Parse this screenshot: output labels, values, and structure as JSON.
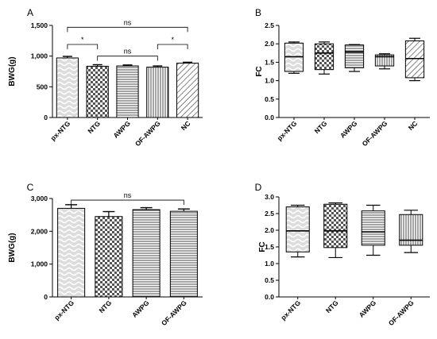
{
  "chart_data": [
    {
      "panel": "A",
      "type": "bar",
      "ylabel": "BWG(g)",
      "ylim": [
        0,
        1500
      ],
      "yticks": [
        0,
        500,
        1000,
        1500
      ],
      "ytick_labels": [
        "0",
        "500",
        "1,000",
        "1,500"
      ],
      "categories": [
        "px-NTG",
        "NTG",
        "AWPG",
        "OF-AWPG",
        "NC"
      ],
      "values": [
        970,
        835,
        840,
        820,
        885
      ],
      "errors": [
        25,
        25,
        15,
        20,
        15
      ],
      "patterns": [
        "wavy",
        "checker",
        "hlines",
        "vlines",
        "diag"
      ],
      "annotations": [
        {
          "text": "ns",
          "from": 0,
          "to": 4,
          "level": 1470
        },
        {
          "text": "*",
          "from": 0,
          "to": 1,
          "level": 1190
        },
        {
          "text": "ns",
          "from": 1,
          "to": 3,
          "level": 1000
        },
        {
          "text": "*",
          "from": 3,
          "to": 4,
          "level": 1190
        }
      ]
    },
    {
      "panel": "B",
      "type": "box",
      "ylabel": "FC",
      "ylim": [
        0,
        2.5
      ],
      "yticks": [
        0,
        0.5,
        1.0,
        1.5,
        2.0,
        2.5
      ],
      "ytick_labels": [
        "0.0",
        "0.5",
        "1.0",
        "1.5",
        "2.0",
        "2.5"
      ],
      "categories": [
        "px-NTG",
        "NTG",
        "AWPG",
        "OF-AWPG",
        "NC"
      ],
      "boxes": [
        {
          "min": 1.2,
          "q1": 1.25,
          "median": 1.65,
          "q3": 2.02,
          "max": 2.05
        },
        {
          "min": 1.18,
          "q1": 1.3,
          "median": 1.75,
          "q3": 2.0,
          "max": 2.05
        },
        {
          "min": 1.25,
          "q1": 1.35,
          "median": 1.78,
          "q3": 1.97,
          "max": 1.98
        },
        {
          "min": 1.32,
          "q1": 1.4,
          "median": 1.65,
          "q3": 1.7,
          "max": 1.73
        },
        {
          "min": 1.0,
          "q1": 1.08,
          "median": 1.6,
          "q3": 2.08,
          "max": 2.15
        }
      ],
      "patterns": [
        "wavy",
        "checker",
        "hlines",
        "vlines",
        "diag"
      ]
    },
    {
      "panel": "C",
      "type": "bar",
      "ylabel": "BWG(g)",
      "ylim": [
        0,
        3000
      ],
      "yticks": [
        0,
        1000,
        2000,
        3000
      ],
      "ytick_labels": [
        "0",
        "1,000",
        "2,000",
        "3,000"
      ],
      "categories": [
        "px-NTG",
        "NTG",
        "AWPG",
        "OF-AWPG"
      ],
      "values": [
        2700,
        2450,
        2660,
        2610
      ],
      "errors": [
        110,
        150,
        60,
        70
      ],
      "patterns": [
        "wavy",
        "checker",
        "hlines",
        "hlines"
      ],
      "annotations": [
        {
          "text": "ns",
          "from": 0,
          "to": 3,
          "level": 2950
        }
      ]
    },
    {
      "panel": "D",
      "type": "box",
      "ylabel": "FC",
      "ylim": [
        0,
        3.0
      ],
      "yticks": [
        0,
        0.5,
        1.0,
        1.5,
        2.0,
        2.5,
        3.0
      ],
      "ytick_labels": [
        "0.0",
        "0.5",
        "1.0",
        "1.5",
        "2.0",
        "2.5",
        "3.0"
      ],
      "categories": [
        "px-NTG",
        "NTG",
        "AWPG",
        "OF-AWPG"
      ],
      "boxes": [
        {
          "min": 1.2,
          "q1": 1.35,
          "median": 1.98,
          "q3": 2.7,
          "max": 2.75
        },
        {
          "min": 1.18,
          "q1": 1.48,
          "median": 1.98,
          "q3": 2.78,
          "max": 2.82
        },
        {
          "min": 1.25,
          "q1": 1.55,
          "median": 1.95,
          "q3": 2.58,
          "max": 2.75
        },
        {
          "min": 1.33,
          "q1": 1.55,
          "median": 1.7,
          "q3": 2.47,
          "max": 2.6
        }
      ],
      "patterns": [
        "wavy",
        "checker",
        "hlines",
        "vlines"
      ]
    }
  ]
}
